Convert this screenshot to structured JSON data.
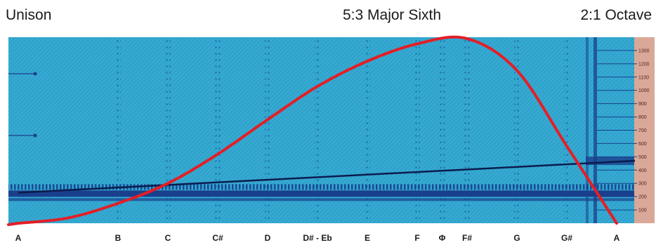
{
  "labels": {
    "left": "Unison",
    "middle": "5:3 Major Sixth",
    "right": "2:1 Octave"
  },
  "chart_data": {
    "type": "line",
    "notes": [
      "A",
      "B",
      "C",
      "C#",
      "D",
      "D# - Eb",
      "E",
      "F",
      "Φ",
      "F#",
      "G",
      "G#",
      "A"
    ],
    "note_positions": [
      0,
      2,
      3,
      4,
      5,
      6,
      7,
      8,
      8.5,
      9,
      10,
      11,
      12
    ],
    "y_ticks": [
      100,
      200,
      300,
      400,
      500,
      600,
      700,
      800,
      900,
      1000,
      1100,
      1200,
      1300
    ],
    "ylim": [
      0,
      1400
    ],
    "curve": {
      "x": [
        0,
        1,
        2,
        3,
        4,
        5,
        6,
        7,
        8,
        9,
        10,
        11,
        12
      ],
      "y": [
        0,
        40,
        150,
        300,
        520,
        780,
        1030,
        1220,
        1350,
        1390,
        1150,
        580,
        0
      ]
    },
    "ascending_line": {
      "x": [
        0,
        12
      ],
      "y": [
        230,
        470
      ]
    },
    "horizontal_line": {
      "y": 220
    },
    "colors": {
      "curve": "#e41e26",
      "background": "#2fa3cc",
      "bands": "#1a3f8c",
      "axis_strip": "#d9a898"
    }
  }
}
